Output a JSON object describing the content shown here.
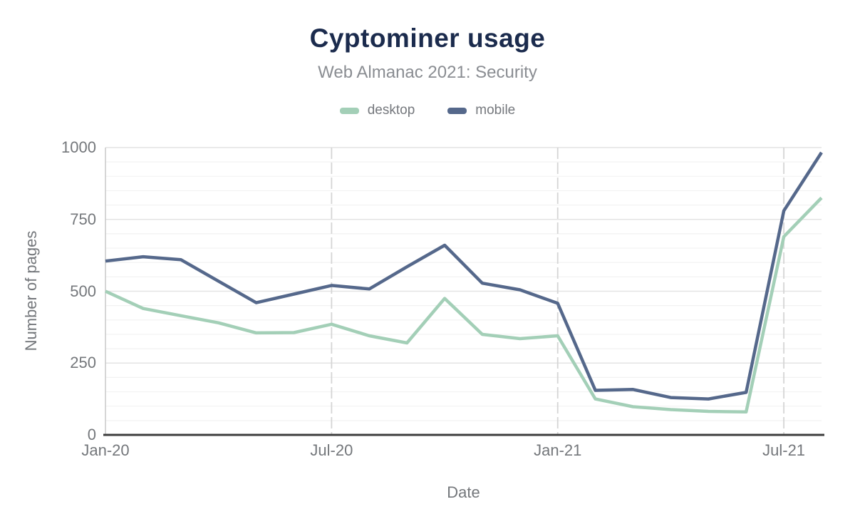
{
  "title": "Cyptominer usage",
  "subtitle": "Web Almanac 2021: Security",
  "colors": {
    "title_text": "#1b2b4d",
    "subtitle_text": "#8a8d92",
    "axis_text": "#74777b",
    "grid_minor": "#f2f2f2",
    "grid_major": "#e4e4e4",
    "grid_vertical": "#d5d5d5",
    "y_axis_line": "#cccccc",
    "x_axis_line": "#3d3d3d",
    "desktop_line": "#a3cfb7",
    "mobile_line": "#55688b"
  },
  "chart_data": {
    "type": "line",
    "title": "Cyptominer usage",
    "subtitle": "Web Almanac 2021: Security",
    "xlabel": "Date",
    "ylabel": "Number of pages",
    "x": [
      "Jan-20",
      "Feb-20",
      "Mar-20",
      "Apr-20",
      "May-20",
      "Jun-20",
      "Jul-20",
      "Aug-20",
      "Sep-20",
      "Oct-20",
      "Nov-20",
      "Dec-20",
      "Jan-21",
      "Feb-21",
      "Mar-21",
      "Apr-21",
      "May-21",
      "Jun-21",
      "Jul-21",
      "Aug-21"
    ],
    "x_tick_indices": [
      0,
      6,
      12,
      18
    ],
    "x_tick_labels": [
      "Jan-20",
      "Jul-20",
      "Jan-21",
      "Jul-21"
    ],
    "y_ticks": [
      0,
      250,
      500,
      750,
      1000
    ],
    "ylim": [
      0,
      1000
    ],
    "minor_grid_step": 50,
    "major_grid_step": 250,
    "grid": true,
    "legend_position": "top",
    "series": [
      {
        "name": "desktop",
        "color": "#a3cfb7",
        "values": [
          500,
          440,
          415,
          390,
          355,
          356,
          385,
          345,
          320,
          475,
          350,
          335,
          345,
          125,
          98,
          88,
          82,
          80,
          690,
          825
        ]
      },
      {
        "name": "mobile",
        "color": "#55688b",
        "values": [
          605,
          620,
          610,
          535,
          460,
          490,
          520,
          508,
          585,
          660,
          528,
          505,
          458,
          155,
          158,
          130,
          125,
          148,
          780,
          983
        ]
      }
    ]
  }
}
